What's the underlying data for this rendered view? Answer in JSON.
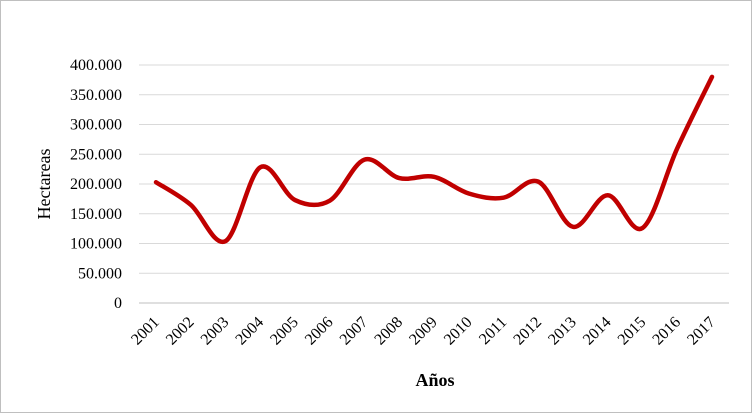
{
  "chart_data": {
    "type": "line",
    "title": "",
    "xlabel": "Años",
    "ylabel": "Hectareas",
    "ylim": [
      0,
      400000
    ],
    "y_ticks": [
      0,
      50000,
      100000,
      150000,
      200000,
      250000,
      300000,
      350000,
      400000
    ],
    "y_tick_labels": [
      "0",
      "50.000",
      "100.000",
      "150.000",
      "200.000",
      "250.000",
      "300.000",
      "350.000",
      "400.000"
    ],
    "categories": [
      "2001",
      "2002",
      "2003",
      "2004",
      "2005",
      "2006",
      "2007",
      "2008",
      "2009",
      "2010",
      "2011",
      "2012",
      "2013",
      "2014",
      "2015",
      "2016",
      "2017"
    ],
    "series": [
      {
        "values": [
          203000,
          165000,
          104000,
          228000,
          173000,
          172000,
          241000,
          210000,
          212000,
          184000,
          177000,
          204000,
          128000,
          181000,
          126000,
          260000,
          380000
        ]
      }
    ],
    "line_color": "#c00000",
    "grid": "horizontal",
    "legend": "none"
  }
}
